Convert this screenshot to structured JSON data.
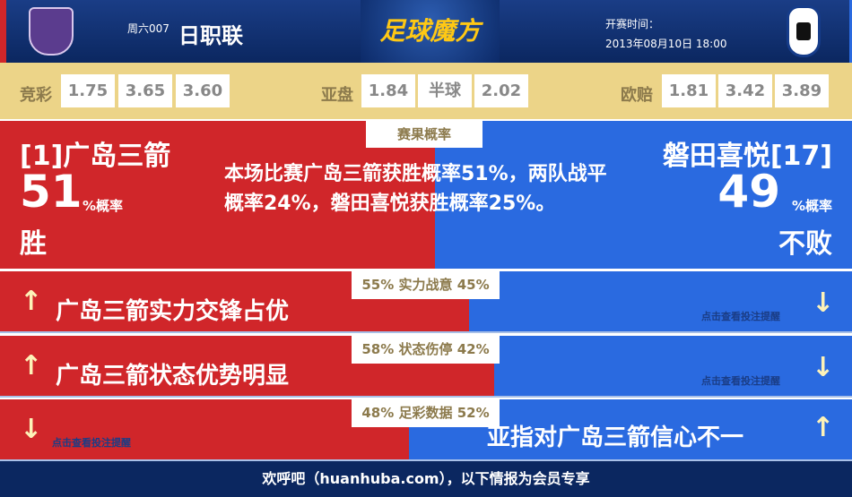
{
  "header": {
    "week": "周六007",
    "league": "日职联",
    "brand": "足球魔方",
    "kickoff_label": "开赛时间：",
    "kickoff": "2013年08月10日 18:00"
  },
  "odds": {
    "jc_label": "竞彩",
    "jc": [
      "1.75",
      "3.65",
      "3.60"
    ],
    "yp_label": "亚盘",
    "yp": [
      "1.84",
      "半球",
      "2.02"
    ],
    "op_label": "欧赔",
    "op": [
      "1.81",
      "3.42",
      "3.89"
    ]
  },
  "result": {
    "tag": "赛果概率",
    "home": "[1]广岛三箭",
    "home_pct": "51",
    "pct_unit": "%概率",
    "home_result": "胜",
    "away": "磐田喜悦[17]",
    "away_pct": "49",
    "away_result": "不败",
    "summary": "本场比赛广岛三箭获胜概率51%，两队战平概率24%，磐田喜悦获胜概率25%。"
  },
  "bars": [
    {
      "label": "55% 实力战意 45%",
      "home_share": 55,
      "message": "广岛三箭实力交锋占优",
      "hint": "点击查看投注提醒",
      "side": "home"
    },
    {
      "label": "58% 状态伤停 42%",
      "home_share": 58,
      "message": "广岛三箭状态优势明显",
      "hint": "点击查看投注提醒",
      "side": "home"
    },
    {
      "label": "48% 足彩数据 52%",
      "home_share": 48,
      "message": "亚指对广岛三箭信心不一",
      "hint": "点击查看投注提醒",
      "side": "away"
    }
  ],
  "footer": "欢呼吧（huanhuba.com），以下情报为会员专享",
  "colors": {
    "home": "#d0262a",
    "away": "#2a6ae0",
    "odds_bg": "#ecd488",
    "header": "#0b2760"
  }
}
